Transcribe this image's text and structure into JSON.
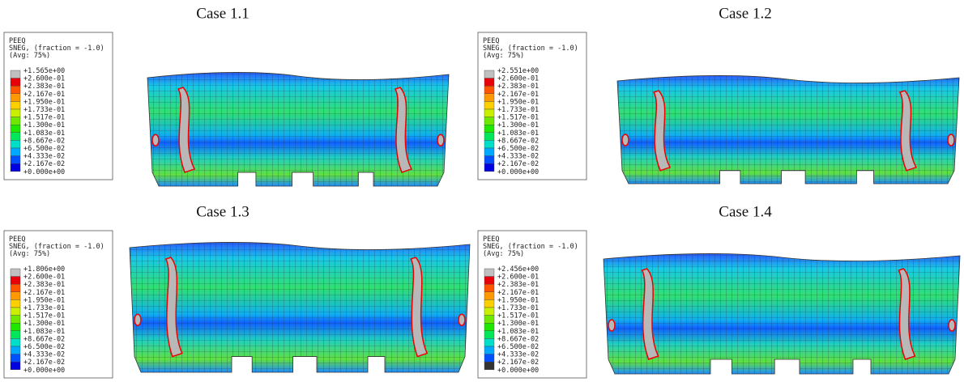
{
  "panels": [
    {
      "title": "Case 1.1",
      "legend": {
        "variable": "PEEQ",
        "option": "SNEG, (fraction = -1.0)",
        "average": "(Avg: 75%)",
        "levels": [
          "+1.565e+00",
          "+2.600e-01",
          "+2.383e-01",
          "+2.167e-01",
          "+1.950e-01",
          "+1.733e-01",
          "+1.517e-01",
          "+1.300e-01",
          "+1.083e-01",
          "+8.667e-02",
          "+6.500e-02",
          "+4.333e-02",
          "+2.167e-02",
          "+0.000e+00"
        ]
      }
    },
    {
      "title": "Case 1.2",
      "legend": {
        "variable": "PEEQ",
        "option": "SNEG, (fraction = -1.0)",
        "average": "(Avg: 75%)",
        "levels": [
          "+2.551e+00",
          "+2.600e-01",
          "+2.383e-01",
          "+2.167e-01",
          "+1.950e-01",
          "+1.733e-01",
          "+1.517e-01",
          "+1.300e-01",
          "+1.083e-01",
          "+8.667e-02",
          "+6.500e-02",
          "+4.333e-02",
          "+2.167e-02",
          "+0.000e+00"
        ]
      }
    },
    {
      "title": "Case 1.3",
      "legend": {
        "variable": "PEEQ",
        "option": "SNEG, (fraction = -1.0)",
        "average": "(Avg: 75%)",
        "levels": [
          "+1.806e+00",
          "+2.600e-01",
          "+2.383e-01",
          "+2.167e-01",
          "+1.950e-01",
          "+1.733e-01",
          "+1.517e-01",
          "+1.300e-01",
          "+1.083e-01",
          "+8.667e-02",
          "+6.500e-02",
          "+4.333e-02",
          "+2.167e-02",
          "+0.000e+00"
        ]
      }
    },
    {
      "title": "Case 1.4",
      "legend": {
        "variable": "PEEQ",
        "option": "SNEG, (fraction = -1.0)",
        "average": "(Avg: 75%)",
        "levels": [
          "+2.456e+00",
          "+2.600e-01",
          "+2.383e-01",
          "+2.167e-01",
          "+1.950e-01",
          "+1.733e-01",
          "+1.517e-01",
          "+1.300e-01",
          "+1.083e-01",
          "+8.667e-02",
          "+6.500e-02",
          "+4.333e-02",
          "+2.167e-02",
          "+0.000e+00"
        ]
      }
    }
  ]
}
